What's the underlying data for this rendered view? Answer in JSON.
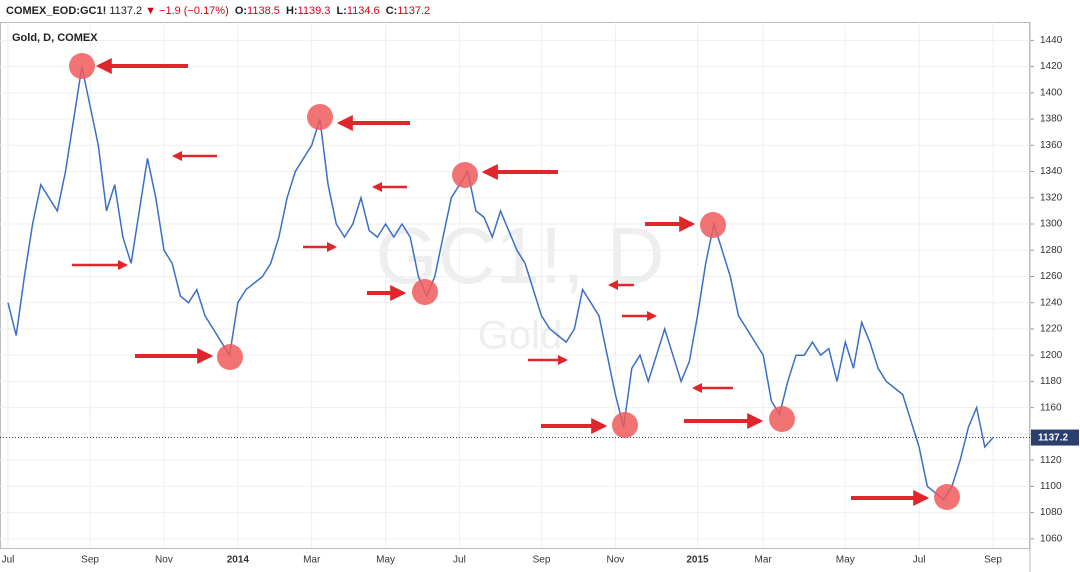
{
  "chart_data": {
    "type": "line",
    "header": {
      "symbol": "COMEX_EOD:GC1!",
      "last": 1137.2,
      "change": "−1.9 (−0.17%)",
      "open_label": "O:",
      "open": 1138.5,
      "high_label": "H:",
      "high": 1139.3,
      "low_label": "L:",
      "low": 1134.6,
      "close_label": "C:",
      "close": 1137.2
    },
    "title": "Gold, D, COMEX",
    "watermark": "GC1!, D",
    "watermark_sub": "Gold",
    "color": "#3b6fc6",
    "last_price": 1137.2,
    "categories": [
      "Jul",
      null,
      null,
      null,
      null,
      null,
      null,
      null,
      null,
      null,
      "Sep",
      null,
      null,
      null,
      null,
      null,
      null,
      null,
      null,
      "Nov",
      null,
      null,
      null,
      null,
      null,
      null,
      null,
      null,
      "2014",
      null,
      null,
      null,
      null,
      null,
      null,
      null,
      null,
      "Mar",
      null,
      null,
      null,
      null,
      null,
      null,
      null,
      null,
      "May",
      null,
      null,
      null,
      null,
      null,
      null,
      null,
      null,
      "Jul",
      null,
      null,
      null,
      null,
      null,
      null,
      null,
      null,
      null,
      "Sep",
      null,
      null,
      null,
      null,
      null,
      null,
      null,
      null,
      "Nov",
      null,
      null,
      null,
      null,
      null,
      null,
      null,
      null,
      null,
      "2015",
      null,
      null,
      null,
      null,
      null,
      null,
      null,
      "Mar",
      null,
      null,
      null,
      null,
      null,
      null,
      null,
      null,
      null,
      "May",
      null,
      null,
      null,
      null,
      null,
      null,
      null,
      null,
      "Jul",
      null,
      null,
      null,
      null,
      null,
      null,
      null,
      null,
      "Sep"
    ],
    "values": [
      1240,
      1215,
      1260,
      1300,
      1330,
      1320,
      1310,
      1340,
      1380,
      1420,
      1390,
      1360,
      1310,
      1330,
      1290,
      1270,
      1310,
      1350,
      1320,
      1280,
      1270,
      1245,
      1240,
      1250,
      1230,
      1220,
      1210,
      1200,
      1240,
      1250,
      1255,
      1260,
      1270,
      1290,
      1320,
      1340,
      1350,
      1360,
      1380,
      1330,
      1300,
      1290,
      1300,
      1320,
      1295,
      1290,
      1300,
      1290,
      1300,
      1290,
      1260,
      1245,
      1260,
      1290,
      1320,
      1330,
      1340,
      1310,
      1305,
      1290,
      1310,
      1295,
      1280,
      1270,
      1250,
      1230,
      1220,
      1215,
      1210,
      1220,
      1250,
      1240,
      1230,
      1200,
      1170,
      1145,
      1190,
      1200,
      1180,
      1200,
      1220,
      1200,
      1180,
      1195,
      1230,
      1270,
      1300,
      1280,
      1260,
      1230,
      1220,
      1210,
      1200,
      1165,
      1155,
      1180,
      1200,
      1200,
      1210,
      1200,
      1205,
      1180,
      1210,
      1190,
      1225,
      1210,
      1190,
      1180,
      1175,
      1170,
      1150,
      1130,
      1100,
      1095,
      1090,
      1100,
      1120,
      1145,
      1160,
      1130,
      1137.2
    ],
    "ylim": [
      1053,
      1454
    ],
    "yticks": [
      1060,
      1080,
      1100,
      1120,
      1140,
      1160,
      1180,
      1200,
      1220,
      1240,
      1260,
      1280,
      1300,
      1320,
      1340,
      1360,
      1380,
      1400,
      1420,
      1440
    ],
    "grid": true
  }
}
